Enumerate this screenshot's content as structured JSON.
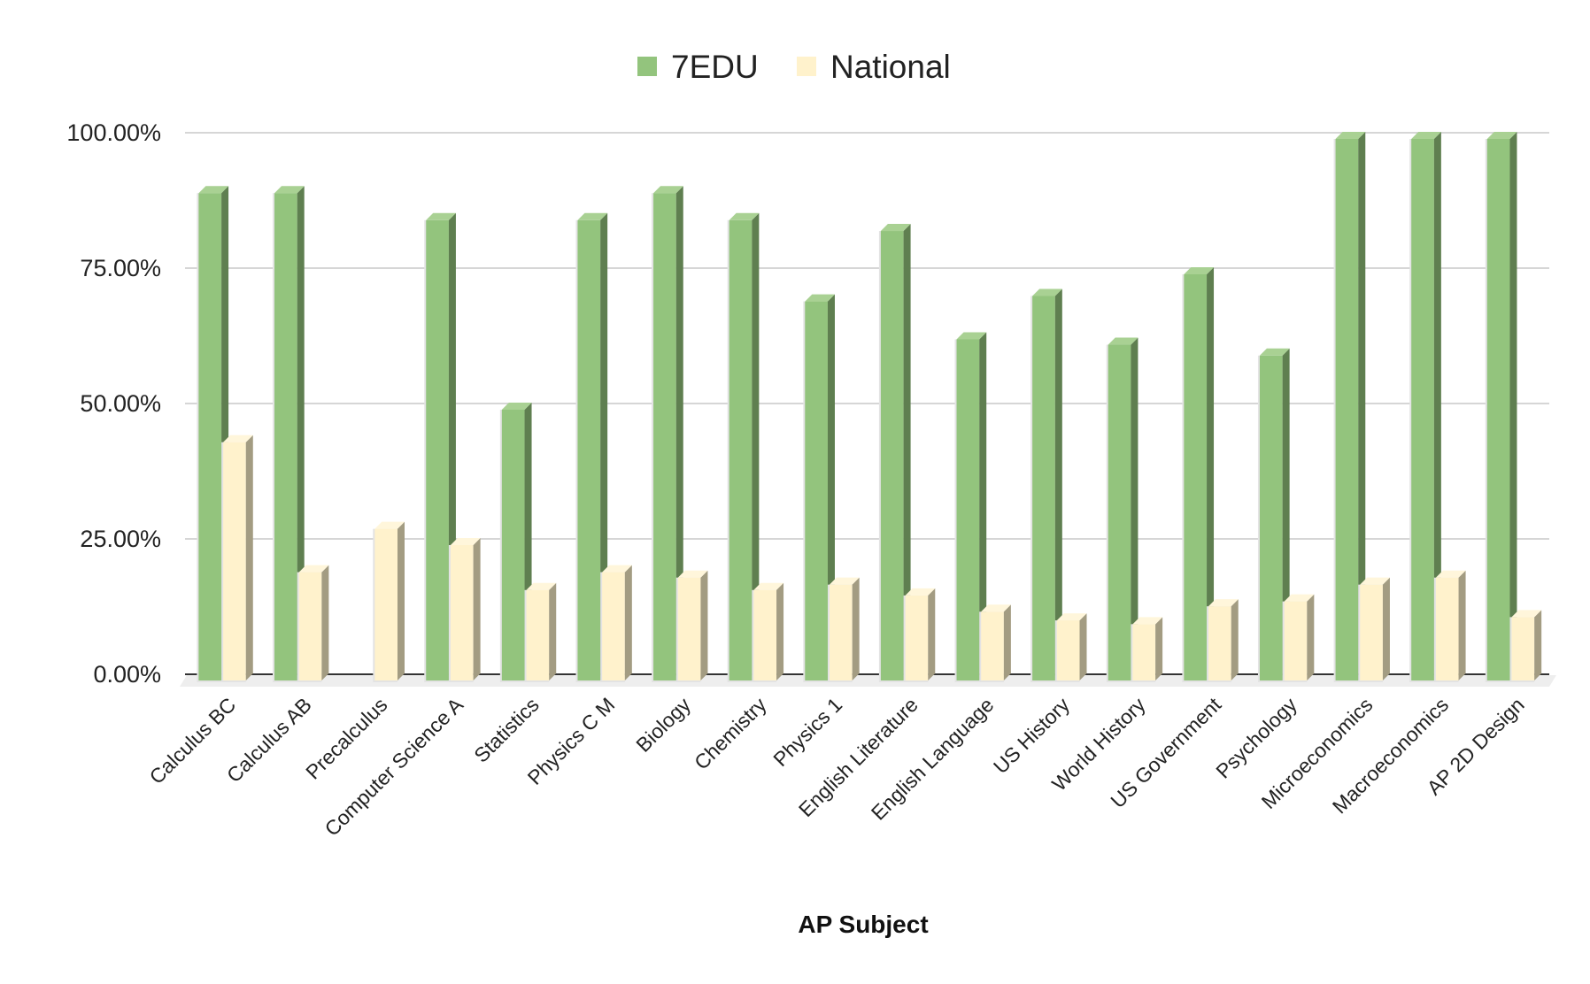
{
  "chart_data": {
    "type": "bar",
    "style": "3d-clustered-column",
    "title": "",
    "xlabel": "AP Subject",
    "ylabel": "",
    "ylim": [
      0,
      100
    ],
    "yticks": [
      "0.00%",
      "25.00%",
      "50.00%",
      "75.00%",
      "100.00%"
    ],
    "grid": true,
    "legend_position": "top",
    "categories": [
      "Calculus BC",
      "Calculus AB",
      "Precalculus",
      "Computer Science A",
      "Statistics",
      "Physics C M",
      "Biology",
      "Chemistry",
      "Physics 1",
      "English Literature",
      "English Language",
      "US History",
      "World History",
      "US Government",
      "Psychology",
      "Microeconomics",
      "Macroeconomics",
      "AP 2D Design"
    ],
    "series": [
      {
        "name": "7EDU",
        "color": "#93c47d",
        "values": [
          90,
          90,
          null,
          85,
          50,
          85,
          90,
          85,
          70,
          83,
          63,
          71,
          62,
          75,
          60,
          100,
          100,
          100
        ]
      },
      {
        "name": "National",
        "color": "#fff2cc",
        "values": [
          44,
          20,
          28,
          25,
          16.7,
          20,
          19,
          16.7,
          17.7,
          15.7,
          12.7,
          11.1,
          10.4,
          13.7,
          14.6,
          17.7,
          19,
          11.7
        ]
      }
    ]
  }
}
